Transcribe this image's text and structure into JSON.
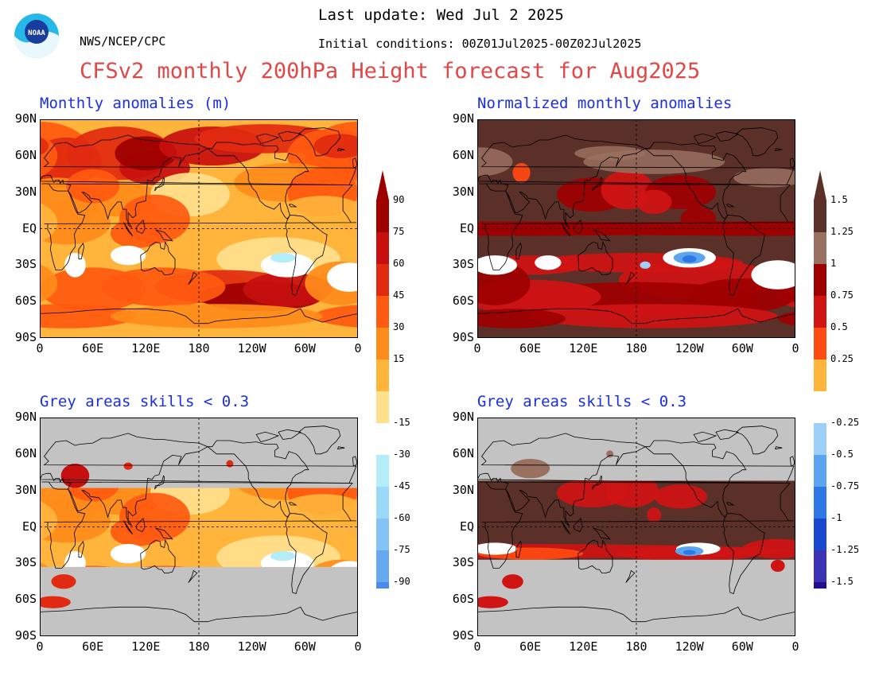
{
  "header": {
    "agency": "NWS/NCEP/CPC",
    "last_update": "Last update: Wed Jul 2 2025",
    "initial_conditions": "Initial conditions: 00Z01Jul2025-00Z02Jul2025",
    "title": "CFSv2 monthly 200hPa Height forecast for Aug2025",
    "logo_text": "NOAA"
  },
  "panels": [
    {
      "title": "Monthly anomalies (m)",
      "kind": "anomaly"
    },
    {
      "title": "Normalized monthly anomalies",
      "kind": "normalized"
    },
    {
      "title": "Grey areas skills < 0.3",
      "kind": "anomaly-masked"
    },
    {
      "title": "Grey areas skills < 0.3",
      "kind": "normalized-masked"
    }
  ],
  "axes": {
    "lat_labels": [
      "90N",
      "60N",
      "30N",
      "EQ",
      "30S",
      "60S",
      "90S"
    ],
    "lon_labels": [
      "0",
      "60E",
      "120E",
      "180",
      "120W",
      "60W",
      "0"
    ]
  },
  "colorbar_left": {
    "labels": [
      "90",
      "75",
      "60",
      "45",
      "30",
      "15",
      "-15",
      "-30",
      "-45",
      "-60",
      "-75",
      "-90"
    ],
    "colors": {
      "warm": [
        "#9e0000",
        "#c80f0f",
        "#e22a10",
        "#ff5a10",
        "#ff8c1a",
        "#ffb43c",
        "#ffe08c"
      ],
      "neutral": "#ffffff",
      "cool": [
        "#b4ecf8",
        "#9cd8f8",
        "#84c4f4",
        "#68a8f0",
        "#4a8ce8",
        "#2c6ee0"
      ]
    }
  },
  "colorbar_right": {
    "labels": [
      "1.5",
      "1.25",
      "1",
      "0.75",
      "0.5",
      "0.25",
      "-0.25",
      "-0.5",
      "-0.75",
      "-1",
      "-1.25",
      "-1.5"
    ],
    "colors": {
      "warm": [
        "#5a3028",
        "#9a7060",
        "#9e0000",
        "#d01414",
        "#ff4a10",
        "#ffb43c"
      ],
      "neutral": "#ffffff",
      "cool": [
        "#9cd0f8",
        "#5aa4f0",
        "#2c78e4",
        "#1848d0",
        "#3c32b4",
        "#20108c"
      ]
    }
  },
  "colors": {
    "grey_mask": "#c3c3c3",
    "brown": "#5a3028",
    "coast": "#000000"
  }
}
